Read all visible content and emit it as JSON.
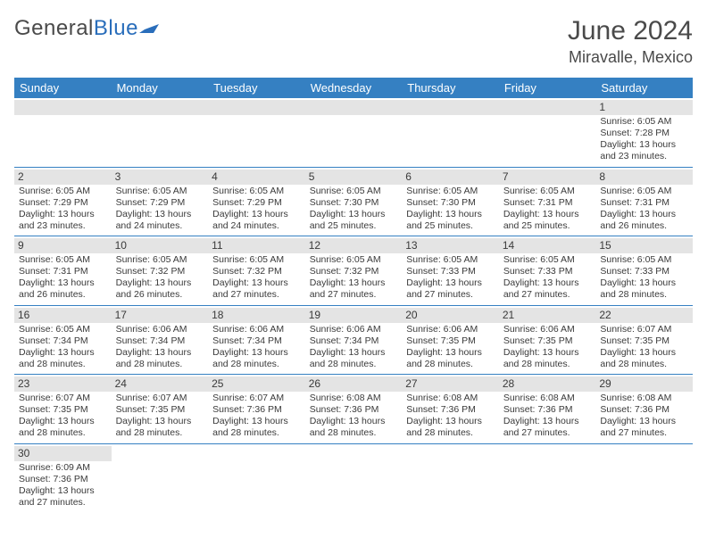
{
  "header": {
    "logo_general": "General",
    "logo_blue": "Blue",
    "month_title": "June 2024",
    "location": "Miravalle, Mexico"
  },
  "colors": {
    "header_blue": "#3580c2",
    "logo_blue": "#2a6ebb",
    "text": "#4a4a4a",
    "cell_text": "#3a3a3a",
    "day_bg": "#e4e4e4",
    "row_sep": "#3580c2"
  },
  "weekdays": [
    "Sunday",
    "Monday",
    "Tuesday",
    "Wednesday",
    "Thursday",
    "Friday",
    "Saturday"
  ],
  "weeks": [
    [
      null,
      null,
      null,
      null,
      null,
      null,
      {
        "day": "1",
        "sunrise": "Sunrise: 6:05 AM",
        "sunset": "Sunset: 7:28 PM",
        "daylight1": "Daylight: 13 hours",
        "daylight2": "and 23 minutes."
      }
    ],
    [
      {
        "day": "2",
        "sunrise": "Sunrise: 6:05 AM",
        "sunset": "Sunset: 7:29 PM",
        "daylight1": "Daylight: 13 hours",
        "daylight2": "and 23 minutes."
      },
      {
        "day": "3",
        "sunrise": "Sunrise: 6:05 AM",
        "sunset": "Sunset: 7:29 PM",
        "daylight1": "Daylight: 13 hours",
        "daylight2": "and 24 minutes."
      },
      {
        "day": "4",
        "sunrise": "Sunrise: 6:05 AM",
        "sunset": "Sunset: 7:29 PM",
        "daylight1": "Daylight: 13 hours",
        "daylight2": "and 24 minutes."
      },
      {
        "day": "5",
        "sunrise": "Sunrise: 6:05 AM",
        "sunset": "Sunset: 7:30 PM",
        "daylight1": "Daylight: 13 hours",
        "daylight2": "and 25 minutes."
      },
      {
        "day": "6",
        "sunrise": "Sunrise: 6:05 AM",
        "sunset": "Sunset: 7:30 PM",
        "daylight1": "Daylight: 13 hours",
        "daylight2": "and 25 minutes."
      },
      {
        "day": "7",
        "sunrise": "Sunrise: 6:05 AM",
        "sunset": "Sunset: 7:31 PM",
        "daylight1": "Daylight: 13 hours",
        "daylight2": "and 25 minutes."
      },
      {
        "day": "8",
        "sunrise": "Sunrise: 6:05 AM",
        "sunset": "Sunset: 7:31 PM",
        "daylight1": "Daylight: 13 hours",
        "daylight2": "and 26 minutes."
      }
    ],
    [
      {
        "day": "9",
        "sunrise": "Sunrise: 6:05 AM",
        "sunset": "Sunset: 7:31 PM",
        "daylight1": "Daylight: 13 hours",
        "daylight2": "and 26 minutes."
      },
      {
        "day": "10",
        "sunrise": "Sunrise: 6:05 AM",
        "sunset": "Sunset: 7:32 PM",
        "daylight1": "Daylight: 13 hours",
        "daylight2": "and 26 minutes."
      },
      {
        "day": "11",
        "sunrise": "Sunrise: 6:05 AM",
        "sunset": "Sunset: 7:32 PM",
        "daylight1": "Daylight: 13 hours",
        "daylight2": "and 27 minutes."
      },
      {
        "day": "12",
        "sunrise": "Sunrise: 6:05 AM",
        "sunset": "Sunset: 7:32 PM",
        "daylight1": "Daylight: 13 hours",
        "daylight2": "and 27 minutes."
      },
      {
        "day": "13",
        "sunrise": "Sunrise: 6:05 AM",
        "sunset": "Sunset: 7:33 PM",
        "daylight1": "Daylight: 13 hours",
        "daylight2": "and 27 minutes."
      },
      {
        "day": "14",
        "sunrise": "Sunrise: 6:05 AM",
        "sunset": "Sunset: 7:33 PM",
        "daylight1": "Daylight: 13 hours",
        "daylight2": "and 27 minutes."
      },
      {
        "day": "15",
        "sunrise": "Sunrise: 6:05 AM",
        "sunset": "Sunset: 7:33 PM",
        "daylight1": "Daylight: 13 hours",
        "daylight2": "and 28 minutes."
      }
    ],
    [
      {
        "day": "16",
        "sunrise": "Sunrise: 6:05 AM",
        "sunset": "Sunset: 7:34 PM",
        "daylight1": "Daylight: 13 hours",
        "daylight2": "and 28 minutes."
      },
      {
        "day": "17",
        "sunrise": "Sunrise: 6:06 AM",
        "sunset": "Sunset: 7:34 PM",
        "daylight1": "Daylight: 13 hours",
        "daylight2": "and 28 minutes."
      },
      {
        "day": "18",
        "sunrise": "Sunrise: 6:06 AM",
        "sunset": "Sunset: 7:34 PM",
        "daylight1": "Daylight: 13 hours",
        "daylight2": "and 28 minutes."
      },
      {
        "day": "19",
        "sunrise": "Sunrise: 6:06 AM",
        "sunset": "Sunset: 7:34 PM",
        "daylight1": "Daylight: 13 hours",
        "daylight2": "and 28 minutes."
      },
      {
        "day": "20",
        "sunrise": "Sunrise: 6:06 AM",
        "sunset": "Sunset: 7:35 PM",
        "daylight1": "Daylight: 13 hours",
        "daylight2": "and 28 minutes."
      },
      {
        "day": "21",
        "sunrise": "Sunrise: 6:06 AM",
        "sunset": "Sunset: 7:35 PM",
        "daylight1": "Daylight: 13 hours",
        "daylight2": "and 28 minutes."
      },
      {
        "day": "22",
        "sunrise": "Sunrise: 6:07 AM",
        "sunset": "Sunset: 7:35 PM",
        "daylight1": "Daylight: 13 hours",
        "daylight2": "and 28 minutes."
      }
    ],
    [
      {
        "day": "23",
        "sunrise": "Sunrise: 6:07 AM",
        "sunset": "Sunset: 7:35 PM",
        "daylight1": "Daylight: 13 hours",
        "daylight2": "and 28 minutes."
      },
      {
        "day": "24",
        "sunrise": "Sunrise: 6:07 AM",
        "sunset": "Sunset: 7:35 PM",
        "daylight1": "Daylight: 13 hours",
        "daylight2": "and 28 minutes."
      },
      {
        "day": "25",
        "sunrise": "Sunrise: 6:07 AM",
        "sunset": "Sunset: 7:36 PM",
        "daylight1": "Daylight: 13 hours",
        "daylight2": "and 28 minutes."
      },
      {
        "day": "26",
        "sunrise": "Sunrise: 6:08 AM",
        "sunset": "Sunset: 7:36 PM",
        "daylight1": "Daylight: 13 hours",
        "daylight2": "and 28 minutes."
      },
      {
        "day": "27",
        "sunrise": "Sunrise: 6:08 AM",
        "sunset": "Sunset: 7:36 PM",
        "daylight1": "Daylight: 13 hours",
        "daylight2": "and 28 minutes."
      },
      {
        "day": "28",
        "sunrise": "Sunrise: 6:08 AM",
        "sunset": "Sunset: 7:36 PM",
        "daylight1": "Daylight: 13 hours",
        "daylight2": "and 27 minutes."
      },
      {
        "day": "29",
        "sunrise": "Sunrise: 6:08 AM",
        "sunset": "Sunset: 7:36 PM",
        "daylight1": "Daylight: 13 hours",
        "daylight2": "and 27 minutes."
      }
    ],
    [
      {
        "day": "30",
        "sunrise": "Sunrise: 6:09 AM",
        "sunset": "Sunset: 7:36 PM",
        "daylight1": "Daylight: 13 hours",
        "daylight2": "and 27 minutes."
      },
      null,
      null,
      null,
      null,
      null,
      null
    ]
  ]
}
